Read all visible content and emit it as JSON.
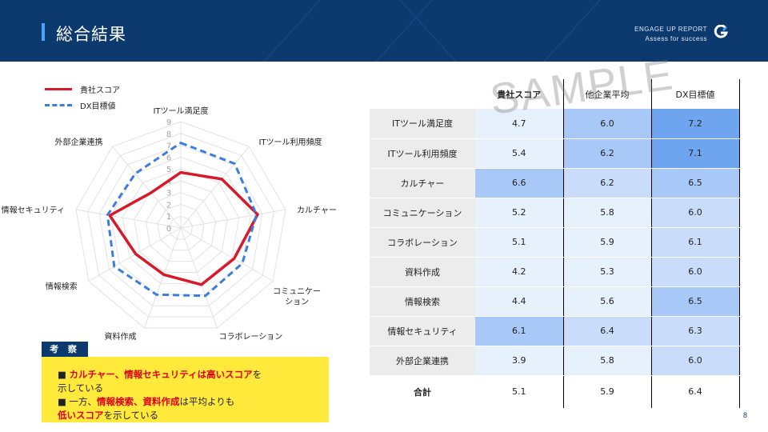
{
  "header": {
    "title": "総合結果",
    "report_line1": "ENGAGE UP REPORT",
    "report_line2": "Assess for success"
  },
  "legend": [
    {
      "label": "貴社スコア",
      "color": "#d7192a",
      "style": "solid"
    },
    {
      "label": "DX目標値",
      "color": "#3b7ee0",
      "style": "dashed"
    }
  ],
  "chart_data": {
    "type": "radar",
    "axes": [
      "ITツール満足度",
      "ITツール利用頻度",
      "カルチャー",
      "コミュニケーション",
      "コラボレーション",
      "資料作成",
      "情報検索",
      "情報セキュリティ",
      "外部企業連携"
    ],
    "axis_labels": [
      "ITツール満足度",
      "ITツール利用頻度",
      "カルチャー",
      "コミュニケー\nション",
      "コラボレーション",
      "資料作成",
      "情報検索",
      "情報セキュリティ",
      "外部企業連携"
    ],
    "ticks": [
      "0",
      "1",
      "2",
      "3",
      "4",
      "5",
      "6",
      "7",
      "8",
      "9"
    ],
    "range": [
      0,
      9
    ],
    "series": [
      {
        "name": "貴社スコア",
        "color": "#d7192a",
        "values": [
          4.7,
          5.4,
          6.6,
          5.2,
          5.1,
          4.2,
          4.4,
          6.1,
          3.9
        ]
      },
      {
        "name": "DX目標値",
        "color": "#3b7ee0",
        "values": [
          7.2,
          7.1,
          6.5,
          6.0,
          6.1,
          6.0,
          6.5,
          6.3,
          6.0
        ]
      }
    ]
  },
  "note": {
    "tag": "考 察",
    "l1_mark": "■ ",
    "l1_red": "カルチャー、情報セキュリティは高いスコア",
    "l1_rest": "を",
    "l2": "示している",
    "l3_mark": "■ 一方、",
    "l3_red": "情報検索、資料作成",
    "l3_rest": "は平均よりも",
    "l4_red": "低いスコア",
    "l4_rest": "を示している"
  },
  "table": {
    "headers": [
      "貴社スコア",
      "他企業平均",
      "DX目標値"
    ],
    "rows": [
      {
        "label": "ITツール満足度",
        "values": [
          "4.7",
          "6.0",
          "7.2"
        ],
        "colors": [
          "#e6f1fc",
          "#a8c9f7",
          "#6fa4ee"
        ]
      },
      {
        "label": "ITツール利用頻度",
        "values": [
          "5.4",
          "6.2",
          "7.1"
        ],
        "colors": [
          "#e6f1fc",
          "#a8c9f7",
          "#6fa4ee"
        ]
      },
      {
        "label": "カルチャー",
        "values": [
          "6.6",
          "6.2",
          "6.5"
        ],
        "colors": [
          "#a8c9f7",
          "#c9ddfa",
          "#a8c9f7"
        ]
      },
      {
        "label": "コミュニケーション",
        "values": [
          "5.2",
          "5.8",
          "6.0"
        ],
        "colors": [
          "#e6f1fc",
          "#e6f1fc",
          "#c9ddfa"
        ]
      },
      {
        "label": "コラボレーション",
        "values": [
          "5.1",
          "5.9",
          "6.1"
        ],
        "colors": [
          "#e6f1fc",
          "#e6f1fc",
          "#c9ddfa"
        ]
      },
      {
        "label": "資料作成",
        "values": [
          "4.2",
          "5.3",
          "6.0"
        ],
        "colors": [
          "#e6f1fc",
          "#e6f1fc",
          "#c9ddfa"
        ]
      },
      {
        "label": "情報検索",
        "values": [
          "4.4",
          "5.6",
          "6.5"
        ],
        "colors": [
          "#e6f1fc",
          "#e6f1fc",
          "#a8c9f7"
        ]
      },
      {
        "label": "情報セキュリティ",
        "values": [
          "6.1",
          "6.4",
          "6.3"
        ],
        "colors": [
          "#a8c9f7",
          "#c9ddfa",
          "#c9ddfa"
        ]
      },
      {
        "label": "外部企業連携",
        "values": [
          "3.9",
          "5.8",
          "6.0"
        ],
        "colors": [
          "#e6f1fc",
          "#e6f1fc",
          "#c9ddfa"
        ]
      }
    ],
    "total": {
      "label": "合計",
      "values": [
        "5.1",
        "5.9",
        "6.4"
      ]
    }
  },
  "watermark": "SAMPLE",
  "page_number": "8",
  "colors": {
    "navy": "#0d3a6e",
    "accent": "#4aa3ff",
    "note_bg": "#ffe93b",
    "highlight_red": "#e0001b"
  }
}
